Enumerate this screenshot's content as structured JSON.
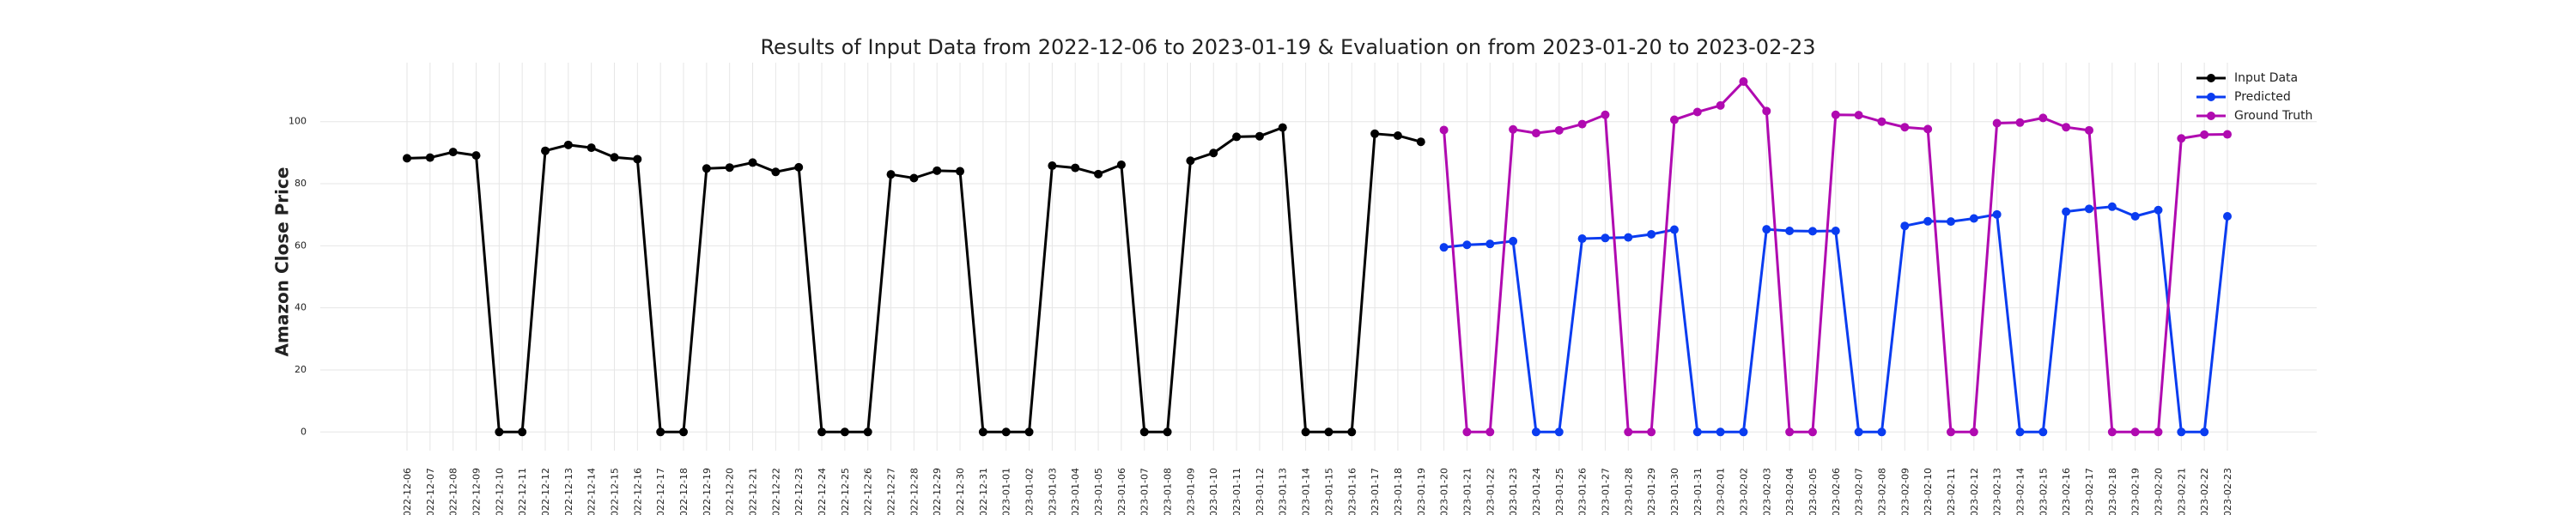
{
  "chart_data": {
    "type": "line",
    "title": "Results of Input Data from 2022-12-06 to 2023-01-19 & Evaluation on from 2023-01-20 to 2023-02-23",
    "y_label": "Amazon Close Price",
    "categories": [
      "2022-12-06",
      "2022-12-07",
      "2022-12-08",
      "2022-12-09",
      "2022-12-10",
      "2022-12-11",
      "2022-12-12",
      "2022-12-13",
      "2022-12-14",
      "2022-12-15",
      "2022-12-16",
      "2022-12-17",
      "2022-12-18",
      "2022-12-19",
      "2022-12-20",
      "2022-12-21",
      "2022-12-22",
      "2022-12-23",
      "2022-12-24",
      "2022-12-25",
      "2022-12-26",
      "2022-12-27",
      "2022-12-28",
      "2022-12-29",
      "2022-12-30",
      "2022-12-31",
      "2023-01-01",
      "2023-01-02",
      "2023-01-03",
      "2023-01-04",
      "2023-01-05",
      "2023-01-06",
      "2023-01-07",
      "2023-01-08",
      "2023-01-09",
      "2023-01-10",
      "2023-01-11",
      "2023-01-12",
      "2023-01-13",
      "2023-01-14",
      "2023-01-15",
      "2023-01-16",
      "2023-01-17",
      "2023-01-18",
      "2023-01-19",
      "2023-01-20",
      "2023-01-21",
      "2023-01-22",
      "2023-01-23",
      "2023-01-24",
      "2023-01-25",
      "2023-01-26",
      "2023-01-27",
      "2023-01-28",
      "2023-01-29",
      "2023-01-30",
      "2023-01-31",
      "2023-02-01",
      "2023-02-02",
      "2023-02-03",
      "2023-02-04",
      "2023-02-05",
      "2023-02-06",
      "2023-02-07",
      "2023-02-08",
      "2023-02-09",
      "2023-02-10",
      "2023-02-11",
      "2023-02-12",
      "2023-02-13",
      "2023-02-14",
      "2023-02-15",
      "2023-02-16",
      "2023-02-17",
      "2023-02-18",
      "2023-02-19",
      "2023-02-20",
      "2023-02-21",
      "2023-02-22",
      "2023-02-23"
    ],
    "series": [
      {
        "name": "Input Data",
        "color": "#000000",
        "values": [
          88.2,
          88.4,
          90.2,
          89.1,
          0,
          0,
          90.6,
          92.5,
          91.6,
          88.5,
          87.9,
          0,
          0,
          84.9,
          85.2,
          86.8,
          83.8,
          85.3,
          0,
          0,
          0,
          83.0,
          81.8,
          84.2,
          84.0,
          0,
          0,
          0,
          85.8,
          85.1,
          83.1,
          86.1,
          0,
          0,
          87.4,
          89.9,
          95.1,
          95.3,
          98.1,
          0,
          0,
          0,
          96.1,
          95.5,
          93.5,
          null,
          null,
          null,
          null,
          null,
          null,
          null,
          null,
          null,
          null,
          null,
          null,
          null,
          null,
          null,
          null,
          null,
          null,
          null,
          null,
          null,
          null,
          null,
          null,
          null,
          null,
          null,
          null,
          null,
          null,
          null,
          null,
          null,
          null,
          null
        ]
      },
      {
        "name": "Predicted",
        "color": "#0a3cf0",
        "values": [
          null,
          null,
          null,
          null,
          null,
          null,
          null,
          null,
          null,
          null,
          null,
          null,
          null,
          null,
          null,
          null,
          null,
          null,
          null,
          null,
          null,
          null,
          null,
          null,
          null,
          null,
          null,
          null,
          null,
          null,
          null,
          null,
          null,
          null,
          null,
          null,
          null,
          null,
          null,
          null,
          null,
          null,
          null,
          null,
          null,
          59.5,
          60.3,
          60.6,
          61.5,
          0,
          0,
          62.3,
          62.5,
          62.7,
          63.7,
          65.2,
          0,
          0,
          0,
          65.3,
          64.8,
          64.7,
          64.8,
          0,
          0,
          66.4,
          67.9,
          67.8,
          68.8,
          70.1,
          0,
          0,
          71.0,
          71.9,
          72.6,
          69.5,
          71.5,
          0,
          0,
          69.5
        ]
      },
      {
        "name": "Ground Truth",
        "color": "#b00ab0",
        "values": [
          null,
          null,
          null,
          null,
          null,
          null,
          null,
          null,
          null,
          null,
          null,
          null,
          null,
          null,
          null,
          null,
          null,
          null,
          null,
          null,
          null,
          null,
          null,
          null,
          null,
          null,
          null,
          null,
          null,
          null,
          null,
          null,
          null,
          null,
          null,
          null,
          null,
          null,
          null,
          null,
          null,
          null,
          null,
          null,
          null,
          97.3,
          0,
          0,
          97.5,
          96.3,
          97.2,
          99.2,
          102.2,
          0,
          0,
          100.6,
          103.1,
          105.2,
          112.9,
          103.4,
          0,
          0,
          102.2,
          102.1,
          100.0,
          98.2,
          97.6,
          0,
          0,
          99.5,
          99.7,
          101.2,
          98.2,
          97.2,
          0,
          0,
          0,
          94.6,
          95.8,
          95.9
        ]
      }
    ],
    "ylim": [
      -6,
      119
    ],
    "yticks": [
      0,
      20,
      40,
      60,
      80,
      100
    ],
    "grid": true,
    "legend": "upper right"
  }
}
